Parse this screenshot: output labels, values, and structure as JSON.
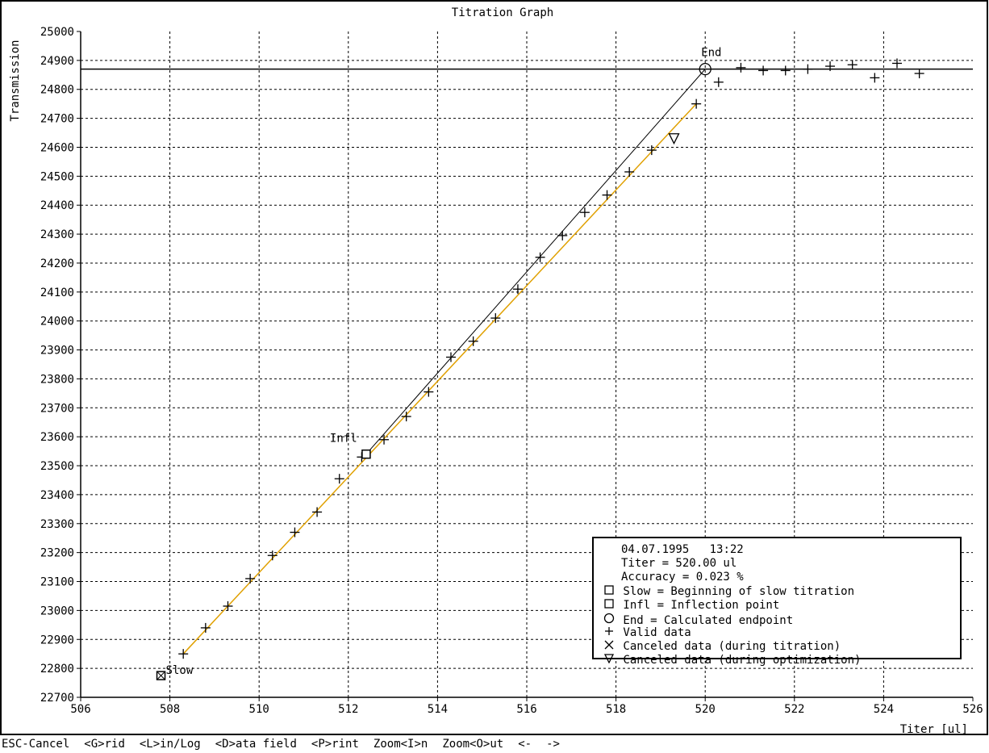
{
  "chart_data": {
    "type": "scatter",
    "title": "Titration Graph",
    "xlabel": "Titer [ul]",
    "ylabel": "Transmission",
    "xlim": [
      506,
      526
    ],
    "ylim": [
      22700,
      25000
    ],
    "x_ticks": [
      "506",
      "508",
      "510",
      "512",
      "514",
      "516",
      "518",
      "520",
      "522",
      "524",
      "526"
    ],
    "y_ticks": [
      "22700",
      "22800",
      "22900",
      "23000",
      "23100",
      "23200",
      "23300",
      "23400",
      "23500",
      "23600",
      "23700",
      "23800",
      "23900",
      "24000",
      "24100",
      "24200",
      "24300",
      "24400",
      "24500",
      "24600",
      "24700",
      "24800",
      "24900",
      "25000"
    ],
    "grid": true,
    "valid_data": [
      [
        508.3,
        22850
      ],
      [
        508.8,
        22940
      ],
      [
        509.3,
        23015
      ],
      [
        509.8,
        23110
      ],
      [
        510.3,
        23190
      ],
      [
        510.8,
        23270
      ],
      [
        511.3,
        23340
      ],
      [
        511.8,
        23455
      ],
      [
        512.3,
        23530
      ],
      [
        512.8,
        23590
      ],
      [
        513.3,
        23670
      ],
      [
        513.8,
        23755
      ],
      [
        514.3,
        23875
      ],
      [
        514.8,
        23930
      ],
      [
        515.3,
        24010
      ],
      [
        515.8,
        24110
      ],
      [
        516.3,
        24220
      ],
      [
        516.8,
        24295
      ],
      [
        517.3,
        24375
      ],
      [
        517.8,
        24435
      ],
      [
        518.3,
        24515
      ],
      [
        518.8,
        24590
      ],
      [
        519.8,
        24750
      ],
      [
        520.3,
        24825
      ],
      [
        520.8,
        24875
      ],
      [
        521.3,
        24865
      ],
      [
        521.8,
        24865
      ],
      [
        522.3,
        24870
      ],
      [
        522.8,
        24880
      ],
      [
        523.3,
        24885
      ],
      [
        523.8,
        24840
      ],
      [
        524.3,
        24890
      ],
      [
        524.8,
        24855
      ]
    ],
    "canceled_optimization": [
      [
        519.3,
        24630
      ]
    ],
    "slow_point": {
      "x": 507.8,
      "y": 22775,
      "label": "Slow"
    },
    "inflection_point": {
      "x": 512.4,
      "y": 23540,
      "label": "Infl"
    },
    "end_point": {
      "x": 520.0,
      "y": 24870,
      "label": "End"
    },
    "end_level": 24870,
    "fit_line": {
      "x1": 508.3,
      "y1": 22850,
      "x2": 519.8,
      "y2": 24750,
      "color": "#e0a000"
    },
    "tangent_line": {
      "x1": 512.4,
      "y1": 23540,
      "x2": 520.0,
      "y2": 24870,
      "color": "#000000"
    }
  },
  "legend": {
    "date": "04.07.1995",
    "time": "13:22",
    "titer": "Titer = 520.00 ul",
    "accuracy": "Accuracy = 0.023 %",
    "items": [
      {
        "icon": "square-icon",
        "text": "Slow = Beginning of slow titration"
      },
      {
        "icon": "square-icon",
        "text": "Infl = Inflection point"
      },
      {
        "icon": "circle-icon",
        "text": "End = Calculated endpoint"
      },
      {
        "icon": "plus-icon",
        "text": "Valid data"
      },
      {
        "icon": "x-icon",
        "text": "Canceled data (during titration)"
      },
      {
        "icon": "triangle-down-icon",
        "text": "Canceled data (during optimization)"
      }
    ]
  },
  "statusbar": {
    "items": [
      "ESC-Cancel",
      "<G>rid",
      "<L>in/Log",
      "<D>ata field",
      "<P>rint",
      "Zoom<I>n",
      "Zoom<O>ut",
      "<-",
      "->"
    ]
  }
}
